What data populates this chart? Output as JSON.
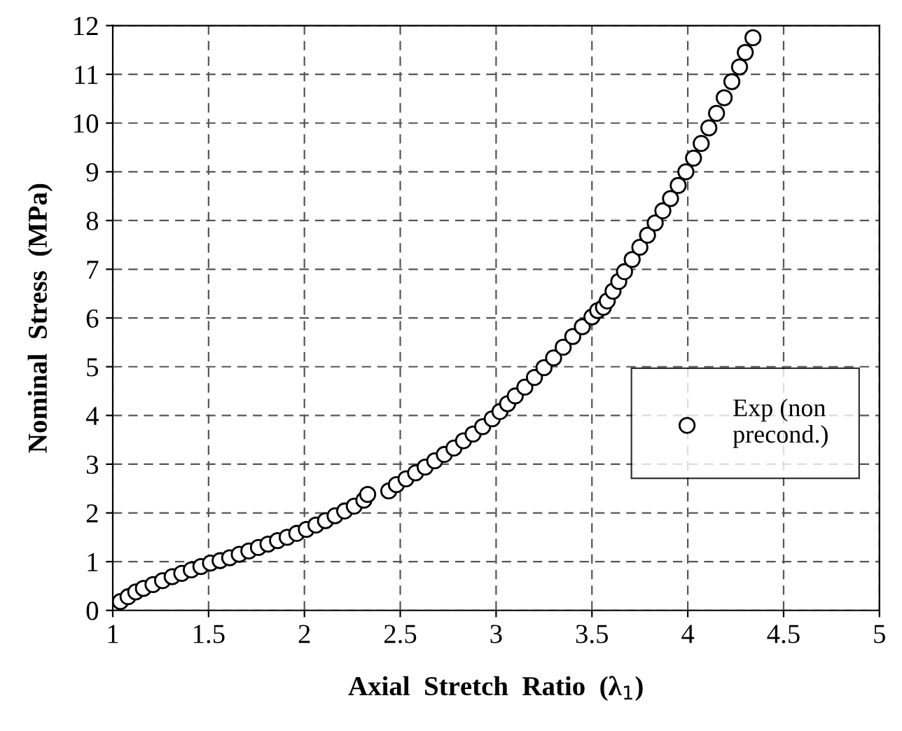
{
  "chart_data": {
    "type": "scatter",
    "xlabel": "Axial  Stretch  Ratio  (λ$_{1}$)",
    "ylabel": "Nominal  Stress  (MPa)",
    "series": [
      {
        "name": "Exp (non\nprecond.)",
        "color": "#ffffff",
        "x": [
          1.04,
          1.08,
          1.12,
          1.16,
          1.21,
          1.26,
          1.31,
          1.36,
          1.41,
          1.46,
          1.51,
          1.56,
          1.61,
          1.66,
          1.71,
          1.76,
          1.81,
          1.86,
          1.91,
          1.96,
          2.01,
          2.06,
          2.11,
          2.16,
          2.21,
          2.26,
          2.31,
          2.33,
          2.44,
          2.48,
          2.53,
          2.58,
          2.63,
          2.68,
          2.73,
          2.78,
          2.83,
          2.88,
          2.93,
          2.98,
          3.02,
          3.06,
          3.1,
          3.15,
          3.2,
          3.25,
          3.3,
          3.35,
          3.4,
          3.45,
          3.5,
          3.53,
          3.56,
          3.58,
          3.61,
          3.64,
          3.67,
          3.71,
          3.75,
          3.79,
          3.83,
          3.87,
          3.91,
          3.95,
          3.99,
          4.03,
          4.07,
          4.11,
          4.15,
          4.19,
          4.23,
          4.27,
          4.3,
          4.34
        ],
        "values": [
          0.18,
          0.28,
          0.38,
          0.45,
          0.53,
          0.61,
          0.69,
          0.76,
          0.83,
          0.9,
          0.97,
          1.02,
          1.08,
          1.15,
          1.22,
          1.29,
          1.36,
          1.43,
          1.5,
          1.58,
          1.66,
          1.75,
          1.84,
          1.94,
          2.04,
          2.14,
          2.26,
          2.38,
          2.45,
          2.58,
          2.7,
          2.82,
          2.94,
          3.07,
          3.2,
          3.33,
          3.48,
          3.62,
          3.77,
          3.93,
          4.08,
          4.24,
          4.4,
          4.58,
          4.78,
          4.98,
          5.18,
          5.4,
          5.62,
          5.82,
          6.02,
          6.15,
          6.22,
          6.35,
          6.55,
          6.75,
          6.95,
          7.2,
          7.45,
          7.7,
          7.95,
          8.2,
          8.45,
          8.72,
          9.0,
          9.28,
          9.58,
          9.9,
          10.2,
          10.52,
          10.85,
          11.15,
          11.45,
          11.75
        ]
      }
    ],
    "xlim": [
      1,
      5
    ],
    "xticks": [
      1,
      1.5,
      2,
      2.5,
      3,
      3.5,
      4,
      4.5,
      5
    ],
    "ylim": [
      0,
      12
    ],
    "yticks": [
      0,
      1,
      2,
      3,
      4,
      5,
      6,
      7,
      8,
      9,
      10,
      11,
      12
    ],
    "grid": true,
    "legend": "right",
    "marker": "circle"
  }
}
